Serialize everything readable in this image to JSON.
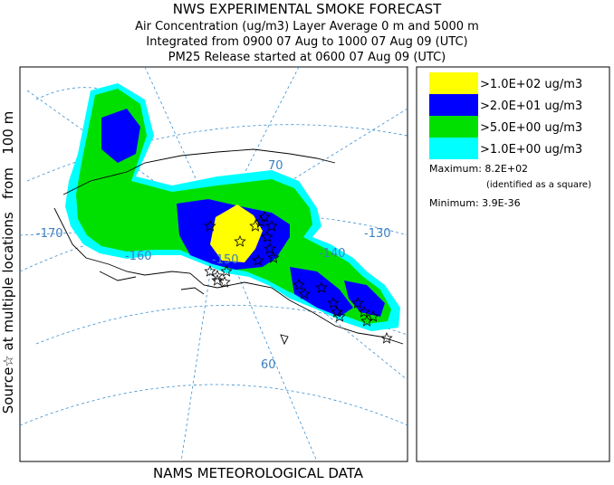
{
  "header": {
    "title": "NWS EXPERIMENTAL SMOKE FORECAST",
    "lines": [
      "Air Concentration (ug/m3) Layer Average    0 m and  5000 m",
      "Integrated from 0900 07 Aug to 1000 07 Aug 09 (UTC)",
      "PM25 Release started at 0600 07 Aug 09 (UTC)"
    ]
  },
  "side_label": "Source☆ at multiple locations   from   100 m",
  "footer": "NAMS METEOROLOGICAL DATA",
  "legend": {
    "items": [
      {
        "label": ">1.0E+02 ug/m3",
        "color": "#ffff00"
      },
      {
        "label": ">2.0E+01 ug/m3",
        "color": "#0000ff"
      },
      {
        "label": ">5.0E+00 ug/m3",
        "color": "#00e000"
      },
      {
        "label": ">1.0E+00 ug/m3",
        "color": "#00ffff"
      }
    ],
    "maximum": "Maximum: 8.2E+02",
    "maximum_note": "(identified as a square)",
    "minimum": "Minimum: 3.9E-36"
  },
  "map": {
    "labels": [
      "-170",
      "-160",
      "-150",
      "-140",
      "-130",
      "70",
      "60"
    ]
  }
}
